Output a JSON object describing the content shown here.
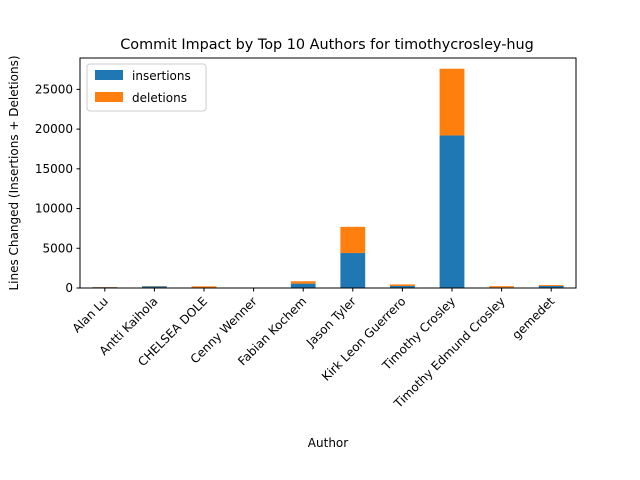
{
  "chart_data": {
    "type": "bar",
    "stacked": true,
    "title": "Commit Impact by Top 10 Authors for timothycrosley-hug",
    "xlabel": "Author",
    "ylabel": "Lines Changed (Insertions + Deletions)",
    "categories": [
      "Alan Lu",
      "Antti Kaihola",
      "CHELSEA DOLE",
      "Cenny Wenner",
      "Fabian Kochem",
      "Jason Tyler",
      "Kirk Leon Guerrero",
      "Timothy Crosley",
      "Timothy Edmund Crosley",
      "gemedet"
    ],
    "series": [
      {
        "name": "insertions",
        "color": "#1f77b4",
        "values": [
          100,
          200,
          60,
          10,
          550,
          4400,
          250,
          19200,
          80,
          250
        ]
      },
      {
        "name": "deletions",
        "color": "#ff7f0e",
        "values": [
          30,
          40,
          150,
          5,
          300,
          3300,
          200,
          8400,
          150,
          120
        ]
      }
    ],
    "ylim": [
      0,
      28950
    ],
    "yticks": [
      0,
      5000,
      10000,
      15000,
      20000,
      25000
    ],
    "grid": false,
    "legend_position": "top-left"
  }
}
